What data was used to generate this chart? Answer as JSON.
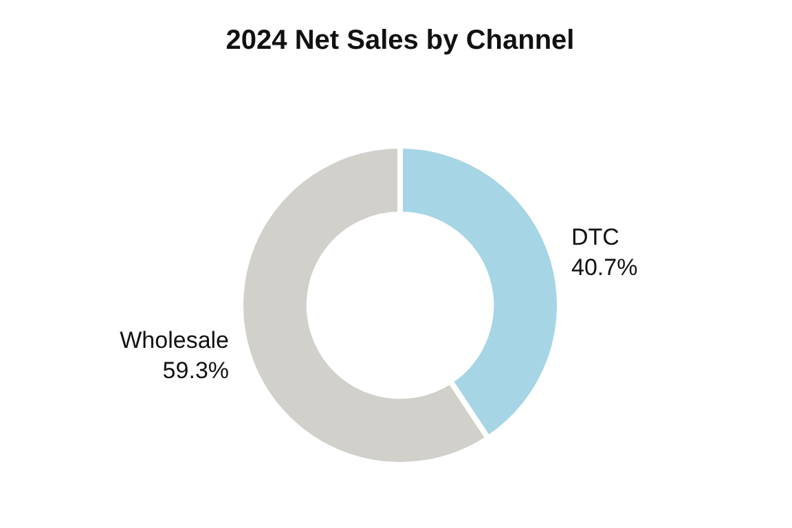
{
  "chart_data": {
    "type": "donut",
    "title": "2024 Net Sales by Channel",
    "categories": [
      "DTC",
      "Wholesale"
    ],
    "values": [
      40.7,
      59.3
    ],
    "value_labels": [
      "40.7%",
      "59.3%"
    ],
    "colors": [
      "#a6d5e5",
      "#d1d0cb"
    ],
    "legend": false
  }
}
